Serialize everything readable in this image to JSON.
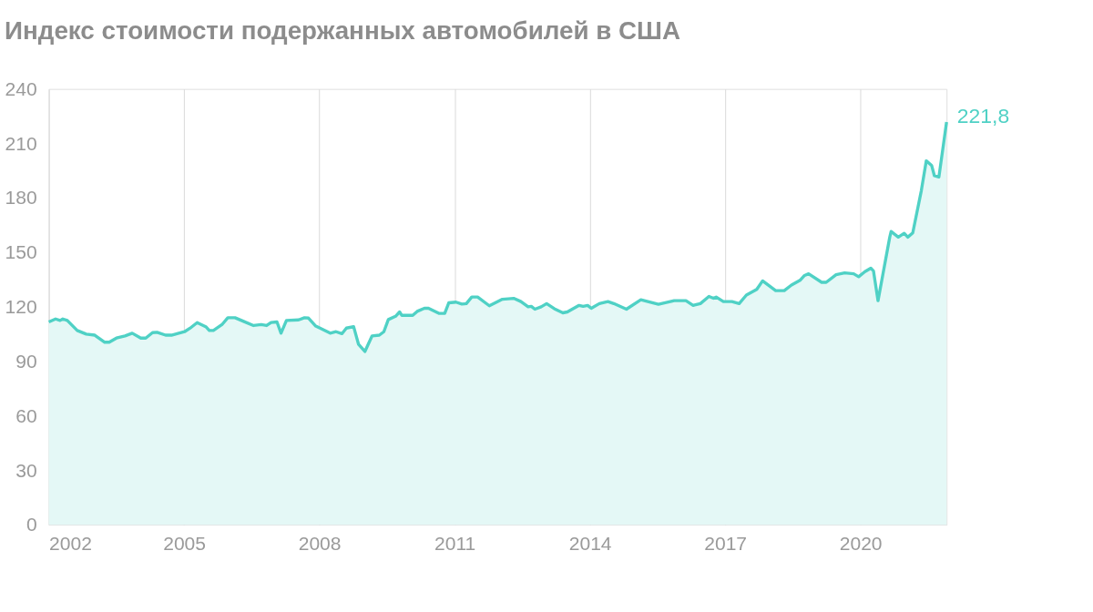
{
  "chart_data": {
    "type": "area",
    "title": "Индекс стоимости подержанных автомобилей в США",
    "x": [
      2002.0,
      2002.15,
      2002.25,
      2002.31,
      2002.41,
      2002.63,
      2002.83,
      2003.02,
      2003.24,
      2003.34,
      2003.5,
      2003.69,
      2003.85,
      2004.04,
      2004.15,
      2004.3,
      2004.4,
      2004.59,
      2004.72,
      2005.01,
      2005.13,
      2005.29,
      2005.49,
      2005.56,
      2005.65,
      2005.84,
      2005.97,
      2006.13,
      2006.32,
      2006.54,
      2006.71,
      2006.83,
      2006.93,
      2007.06,
      2007.15,
      2007.27,
      2007.54,
      2007.67,
      2007.76,
      2007.92,
      2008.24,
      2008.37,
      2008.5,
      2008.6,
      2008.76,
      2008.87,
      2009.01,
      2009.17,
      2009.33,
      2009.43,
      2009.53,
      2009.69,
      2009.78,
      2009.83,
      2010.07,
      2010.17,
      2010.33,
      2010.42,
      2010.65,
      2010.78,
      2010.87,
      2011.03,
      2011.16,
      2011.26,
      2011.38,
      2011.51,
      2011.77,
      2012.06,
      2012.31,
      2012.47,
      2012.63,
      2012.7,
      2012.78,
      2012.92,
      2013.04,
      2013.21,
      2013.4,
      2013.5,
      2013.76,
      2013.85,
      2013.95,
      2014.03,
      2014.21,
      2014.4,
      2014.53,
      2014.81,
      2015.13,
      2015.52,
      2015.87,
      2016.13,
      2016.29,
      2016.45,
      2016.64,
      2016.74,
      2016.8,
      2016.96,
      2017.15,
      2017.31,
      2017.47,
      2017.7,
      2017.83,
      2018.12,
      2018.31,
      2018.47,
      2018.66,
      2018.76,
      2018.85,
      2019.14,
      2019.24,
      2019.46,
      2019.65,
      2019.85,
      2019.96,
      2020.1,
      2020.23,
      2020.29,
      2020.39,
      2020.65,
      2020.68,
      2020.84,
      2020.97,
      2021.05,
      2021.16,
      2021.35,
      2021.46,
      2021.58,
      2021.64,
      2021.74,
      2021.91
    ],
    "series": [
      {
        "color": "#4fd1c5",
        "values": [
          111.7,
          113.3,
          112.5,
          113.3,
          112.5,
          107,
          105,
          104.4,
          100.5,
          100.5,
          102.8,
          104,
          105.5,
          102.8,
          102.8,
          105.8,
          106,
          104.4,
          104.4,
          106.3,
          108.2,
          111.3,
          108.9,
          107,
          107,
          110.2,
          114,
          114,
          112,
          109.7,
          110.2,
          109.7,
          111.4,
          111.7,
          105.5,
          112.5,
          112.8,
          114,
          113.8,
          109.4,
          105.5,
          106.3,
          105.2,
          108.3,
          109.1,
          99.3,
          95.4,
          104,
          104.4,
          106.3,
          113,
          114.8,
          117.2,
          115.3,
          115.3,
          117.5,
          119.2,
          119.2,
          116.4,
          116.4,
          122.2,
          122.6,
          121.5,
          121.8,
          125.4,
          125.4,
          120.6,
          124.2,
          124.7,
          122.9,
          120,
          120.3,
          118.7,
          120,
          121.8,
          119,
          116.7,
          117.2,
          120.8,
          120.3,
          120.8,
          119.2,
          121.8,
          122.9,
          121.8,
          118.7,
          123.9,
          121.4,
          123.4,
          123.4,
          120.8,
          121.8,
          125.7,
          124.7,
          125.4,
          122.9,
          122.9,
          121.8,
          126.5,
          129.6,
          134.3,
          128.9,
          128.9,
          132,
          134.6,
          137.3,
          138.2,
          133.5,
          133.5,
          137.7,
          138.7,
          138.2,
          136.6,
          139.4,
          141.3,
          139.7,
          123.4,
          158.4,
          161.5,
          158.4,
          160.5,
          158.4,
          160.7,
          184,
          200.4,
          197.8,
          192.2,
          191.5,
          221.8
        ]
      }
    ],
    "xlim": [
      2002,
      2021.91
    ],
    "xticks": [
      2002,
      2005,
      2008,
      2011,
      2014,
      2017,
      2020
    ],
    "ylim": [
      0,
      240
    ],
    "yticks": [
      0,
      30,
      60,
      90,
      120,
      150,
      180,
      210,
      240
    ],
    "grid": "x",
    "annotations": [
      {
        "text": "221,8",
        "x": 2021.91,
        "y": 221.8
      }
    ]
  }
}
